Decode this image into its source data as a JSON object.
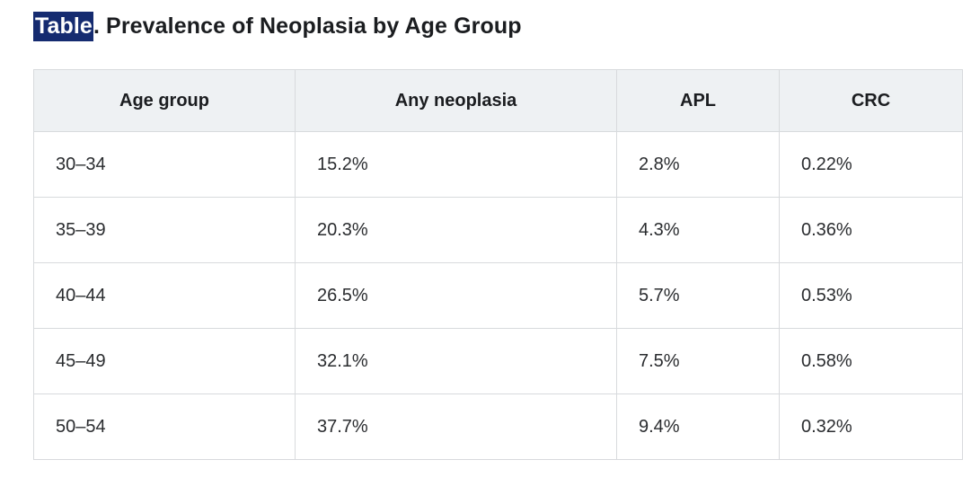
{
  "title": {
    "highlighted_word": "Table",
    "rest": ". Prevalence of Neoplasia by Age Group"
  },
  "colors": {
    "selection_highlight_bg": "#152b70",
    "selection_highlight_text": "#ffffff",
    "header_bg": "#eef1f3",
    "border": "#d8dadd",
    "title_text": "#1b1d20",
    "cell_text": "#2a2c2f"
  },
  "table": {
    "columns": [
      "Age group",
      "Any neoplasia",
      "APL",
      "CRC"
    ],
    "rows": [
      [
        "30–34",
        "15.2%",
        "2.8%",
        "0.22%"
      ],
      [
        "35–39",
        "20.3%",
        "4.3%",
        "0.36%"
      ],
      [
        "40–44",
        "26.5%",
        "5.7%",
        "0.53%"
      ],
      [
        "45–49",
        "32.1%",
        "7.5%",
        "0.58%"
      ],
      [
        "50–54",
        "37.7%",
        "9.4%",
        "0.32%"
      ]
    ]
  },
  "chart_data": {
    "type": "table",
    "title": "Table. Prevalence of Neoplasia by Age Group",
    "columns": [
      "Age group",
      "Any neoplasia",
      "APL",
      "CRC"
    ],
    "categories": [
      "30–34",
      "35–39",
      "40–44",
      "45–49",
      "50–54"
    ],
    "series": [
      {
        "name": "Any neoplasia",
        "values": [
          15.2,
          20.3,
          26.5,
          32.1,
          37.7
        ],
        "unit": "%"
      },
      {
        "name": "APL",
        "values": [
          2.8,
          4.3,
          5.7,
          7.5,
          9.4
        ],
        "unit": "%"
      },
      {
        "name": "CRC",
        "values": [
          0.22,
          0.36,
          0.53,
          0.58,
          0.32
        ],
        "unit": "%"
      }
    ],
    "layout_hints": {
      "header_centered": true,
      "cells_left_aligned": true,
      "grid": "full-borders"
    }
  }
}
